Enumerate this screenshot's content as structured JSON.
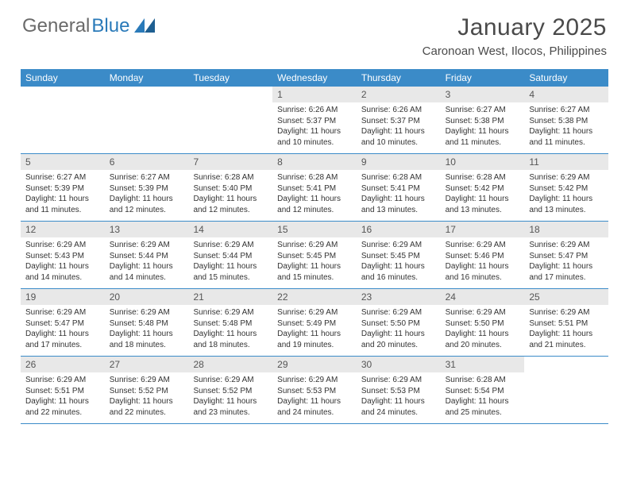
{
  "logo": {
    "text_gray": "General",
    "text_blue": "Blue"
  },
  "header": {
    "month_title": "January 2025",
    "location": "Caronoan West, Ilocos, Philippines"
  },
  "colors": {
    "header_bar": "#3b8bc8",
    "daynum_bg": "#e8e8e8",
    "logo_gray": "#6a6a6a",
    "logo_blue": "#2a7ab9"
  },
  "day_names": [
    "Sunday",
    "Monday",
    "Tuesday",
    "Wednesday",
    "Thursday",
    "Friday",
    "Saturday"
  ],
  "weeks": [
    [
      {
        "n": "",
        "sr": "",
        "ss": "",
        "dl": ""
      },
      {
        "n": "",
        "sr": "",
        "ss": "",
        "dl": ""
      },
      {
        "n": "",
        "sr": "",
        "ss": "",
        "dl": ""
      },
      {
        "n": "1",
        "sr": "Sunrise: 6:26 AM",
        "ss": "Sunset: 5:37 PM",
        "dl": "Daylight: 11 hours and 10 minutes."
      },
      {
        "n": "2",
        "sr": "Sunrise: 6:26 AM",
        "ss": "Sunset: 5:37 PM",
        "dl": "Daylight: 11 hours and 10 minutes."
      },
      {
        "n": "3",
        "sr": "Sunrise: 6:27 AM",
        "ss": "Sunset: 5:38 PM",
        "dl": "Daylight: 11 hours and 11 minutes."
      },
      {
        "n": "4",
        "sr": "Sunrise: 6:27 AM",
        "ss": "Sunset: 5:38 PM",
        "dl": "Daylight: 11 hours and 11 minutes."
      }
    ],
    [
      {
        "n": "5",
        "sr": "Sunrise: 6:27 AM",
        "ss": "Sunset: 5:39 PM",
        "dl": "Daylight: 11 hours and 11 minutes."
      },
      {
        "n": "6",
        "sr": "Sunrise: 6:27 AM",
        "ss": "Sunset: 5:39 PM",
        "dl": "Daylight: 11 hours and 12 minutes."
      },
      {
        "n": "7",
        "sr": "Sunrise: 6:28 AM",
        "ss": "Sunset: 5:40 PM",
        "dl": "Daylight: 11 hours and 12 minutes."
      },
      {
        "n": "8",
        "sr": "Sunrise: 6:28 AM",
        "ss": "Sunset: 5:41 PM",
        "dl": "Daylight: 11 hours and 12 minutes."
      },
      {
        "n": "9",
        "sr": "Sunrise: 6:28 AM",
        "ss": "Sunset: 5:41 PM",
        "dl": "Daylight: 11 hours and 13 minutes."
      },
      {
        "n": "10",
        "sr": "Sunrise: 6:28 AM",
        "ss": "Sunset: 5:42 PM",
        "dl": "Daylight: 11 hours and 13 minutes."
      },
      {
        "n": "11",
        "sr": "Sunrise: 6:29 AM",
        "ss": "Sunset: 5:42 PM",
        "dl": "Daylight: 11 hours and 13 minutes."
      }
    ],
    [
      {
        "n": "12",
        "sr": "Sunrise: 6:29 AM",
        "ss": "Sunset: 5:43 PM",
        "dl": "Daylight: 11 hours and 14 minutes."
      },
      {
        "n": "13",
        "sr": "Sunrise: 6:29 AM",
        "ss": "Sunset: 5:44 PM",
        "dl": "Daylight: 11 hours and 14 minutes."
      },
      {
        "n": "14",
        "sr": "Sunrise: 6:29 AM",
        "ss": "Sunset: 5:44 PM",
        "dl": "Daylight: 11 hours and 15 minutes."
      },
      {
        "n": "15",
        "sr": "Sunrise: 6:29 AM",
        "ss": "Sunset: 5:45 PM",
        "dl": "Daylight: 11 hours and 15 minutes."
      },
      {
        "n": "16",
        "sr": "Sunrise: 6:29 AM",
        "ss": "Sunset: 5:45 PM",
        "dl": "Daylight: 11 hours and 16 minutes."
      },
      {
        "n": "17",
        "sr": "Sunrise: 6:29 AM",
        "ss": "Sunset: 5:46 PM",
        "dl": "Daylight: 11 hours and 16 minutes."
      },
      {
        "n": "18",
        "sr": "Sunrise: 6:29 AM",
        "ss": "Sunset: 5:47 PM",
        "dl": "Daylight: 11 hours and 17 minutes."
      }
    ],
    [
      {
        "n": "19",
        "sr": "Sunrise: 6:29 AM",
        "ss": "Sunset: 5:47 PM",
        "dl": "Daylight: 11 hours and 17 minutes."
      },
      {
        "n": "20",
        "sr": "Sunrise: 6:29 AM",
        "ss": "Sunset: 5:48 PM",
        "dl": "Daylight: 11 hours and 18 minutes."
      },
      {
        "n": "21",
        "sr": "Sunrise: 6:29 AM",
        "ss": "Sunset: 5:48 PM",
        "dl": "Daylight: 11 hours and 18 minutes."
      },
      {
        "n": "22",
        "sr": "Sunrise: 6:29 AM",
        "ss": "Sunset: 5:49 PM",
        "dl": "Daylight: 11 hours and 19 minutes."
      },
      {
        "n": "23",
        "sr": "Sunrise: 6:29 AM",
        "ss": "Sunset: 5:50 PM",
        "dl": "Daylight: 11 hours and 20 minutes."
      },
      {
        "n": "24",
        "sr": "Sunrise: 6:29 AM",
        "ss": "Sunset: 5:50 PM",
        "dl": "Daylight: 11 hours and 20 minutes."
      },
      {
        "n": "25",
        "sr": "Sunrise: 6:29 AM",
        "ss": "Sunset: 5:51 PM",
        "dl": "Daylight: 11 hours and 21 minutes."
      }
    ],
    [
      {
        "n": "26",
        "sr": "Sunrise: 6:29 AM",
        "ss": "Sunset: 5:51 PM",
        "dl": "Daylight: 11 hours and 22 minutes."
      },
      {
        "n": "27",
        "sr": "Sunrise: 6:29 AM",
        "ss": "Sunset: 5:52 PM",
        "dl": "Daylight: 11 hours and 22 minutes."
      },
      {
        "n": "28",
        "sr": "Sunrise: 6:29 AM",
        "ss": "Sunset: 5:52 PM",
        "dl": "Daylight: 11 hours and 23 minutes."
      },
      {
        "n": "29",
        "sr": "Sunrise: 6:29 AM",
        "ss": "Sunset: 5:53 PM",
        "dl": "Daylight: 11 hours and 24 minutes."
      },
      {
        "n": "30",
        "sr": "Sunrise: 6:29 AM",
        "ss": "Sunset: 5:53 PM",
        "dl": "Daylight: 11 hours and 24 minutes."
      },
      {
        "n": "31",
        "sr": "Sunrise: 6:28 AM",
        "ss": "Sunset: 5:54 PM",
        "dl": "Daylight: 11 hours and 25 minutes."
      },
      {
        "n": "",
        "sr": "",
        "ss": "",
        "dl": ""
      }
    ]
  ]
}
